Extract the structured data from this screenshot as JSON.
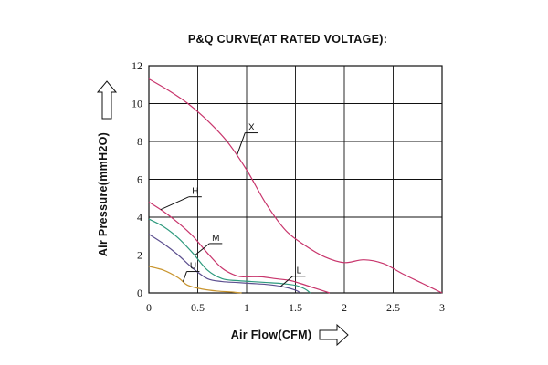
{
  "chart_data": {
    "type": "line",
    "title": "P&Q CURVE(AT RATED VOLTAGE):",
    "xlabel": "Air Flow(CFM)",
    "ylabel": "Air Pressure(mmH2O)",
    "xlim": [
      0,
      3
    ],
    "ylim": [
      0,
      12
    ],
    "x_ticks": [
      0,
      0.5,
      1,
      1.5,
      2,
      2.5,
      3
    ],
    "x_tick_labels": [
      "0",
      "0.5",
      "1",
      "1.5",
      "2",
      "2.5",
      "3"
    ],
    "y_ticks": [
      0,
      2,
      4,
      6,
      8,
      10,
      12
    ],
    "y_tick_labels": [
      "0",
      "2",
      "4",
      "6",
      "8",
      "10",
      "12"
    ],
    "grid": true,
    "series": [
      {
        "name": "X",
        "color": "#c8356c",
        "x": [
          0,
          0.2,
          0.4,
          0.6,
          0.8,
          1.0,
          1.2,
          1.4,
          1.6,
          1.8,
          2.0,
          2.2,
          2.4,
          2.6,
          2.8,
          3.0
        ],
        "y": [
          11.3,
          10.7,
          10.0,
          9.1,
          8.0,
          6.5,
          4.7,
          3.3,
          2.5,
          1.9,
          1.6,
          1.75,
          1.55,
          1.0,
          0.5,
          0.0
        ]
      },
      {
        "name": "H",
        "color": "#c8356c",
        "x": [
          0,
          0.15,
          0.3,
          0.45,
          0.6,
          0.75,
          0.9,
          1.0,
          1.15,
          1.3,
          1.45,
          1.55,
          1.7,
          1.85
        ],
        "y": [
          4.8,
          4.3,
          3.7,
          3.0,
          2.1,
          1.3,
          0.9,
          0.85,
          0.85,
          0.75,
          0.65,
          0.5,
          0.25,
          0.0
        ]
      },
      {
        "name": "M",
        "color": "#2e9a7e",
        "x": [
          0,
          0.15,
          0.3,
          0.45,
          0.6,
          0.75,
          0.9,
          1.05,
          1.2,
          1.35,
          1.5,
          1.6,
          1.65
        ],
        "y": [
          3.9,
          3.5,
          2.9,
          2.1,
          1.2,
          0.75,
          0.65,
          0.6,
          0.55,
          0.5,
          0.4,
          0.2,
          0.0
        ]
      },
      {
        "name": "L",
        "color": "#5c4f8f",
        "x": [
          0,
          0.15,
          0.3,
          0.45,
          0.6,
          0.75,
          0.9,
          1.05,
          1.2,
          1.35,
          1.5,
          1.55
        ],
        "y": [
          3.1,
          2.6,
          2.0,
          1.3,
          0.75,
          0.6,
          0.55,
          0.5,
          0.45,
          0.35,
          0.15,
          0.0
        ]
      },
      {
        "name": "U",
        "color": "#c9952e",
        "x": [
          0,
          0.15,
          0.3,
          0.4,
          0.55,
          0.7,
          0.85,
          0.95
        ],
        "y": [
          1.4,
          1.2,
          0.8,
          0.4,
          0.2,
          0.1,
          0.05,
          0.0
        ]
      }
    ]
  }
}
